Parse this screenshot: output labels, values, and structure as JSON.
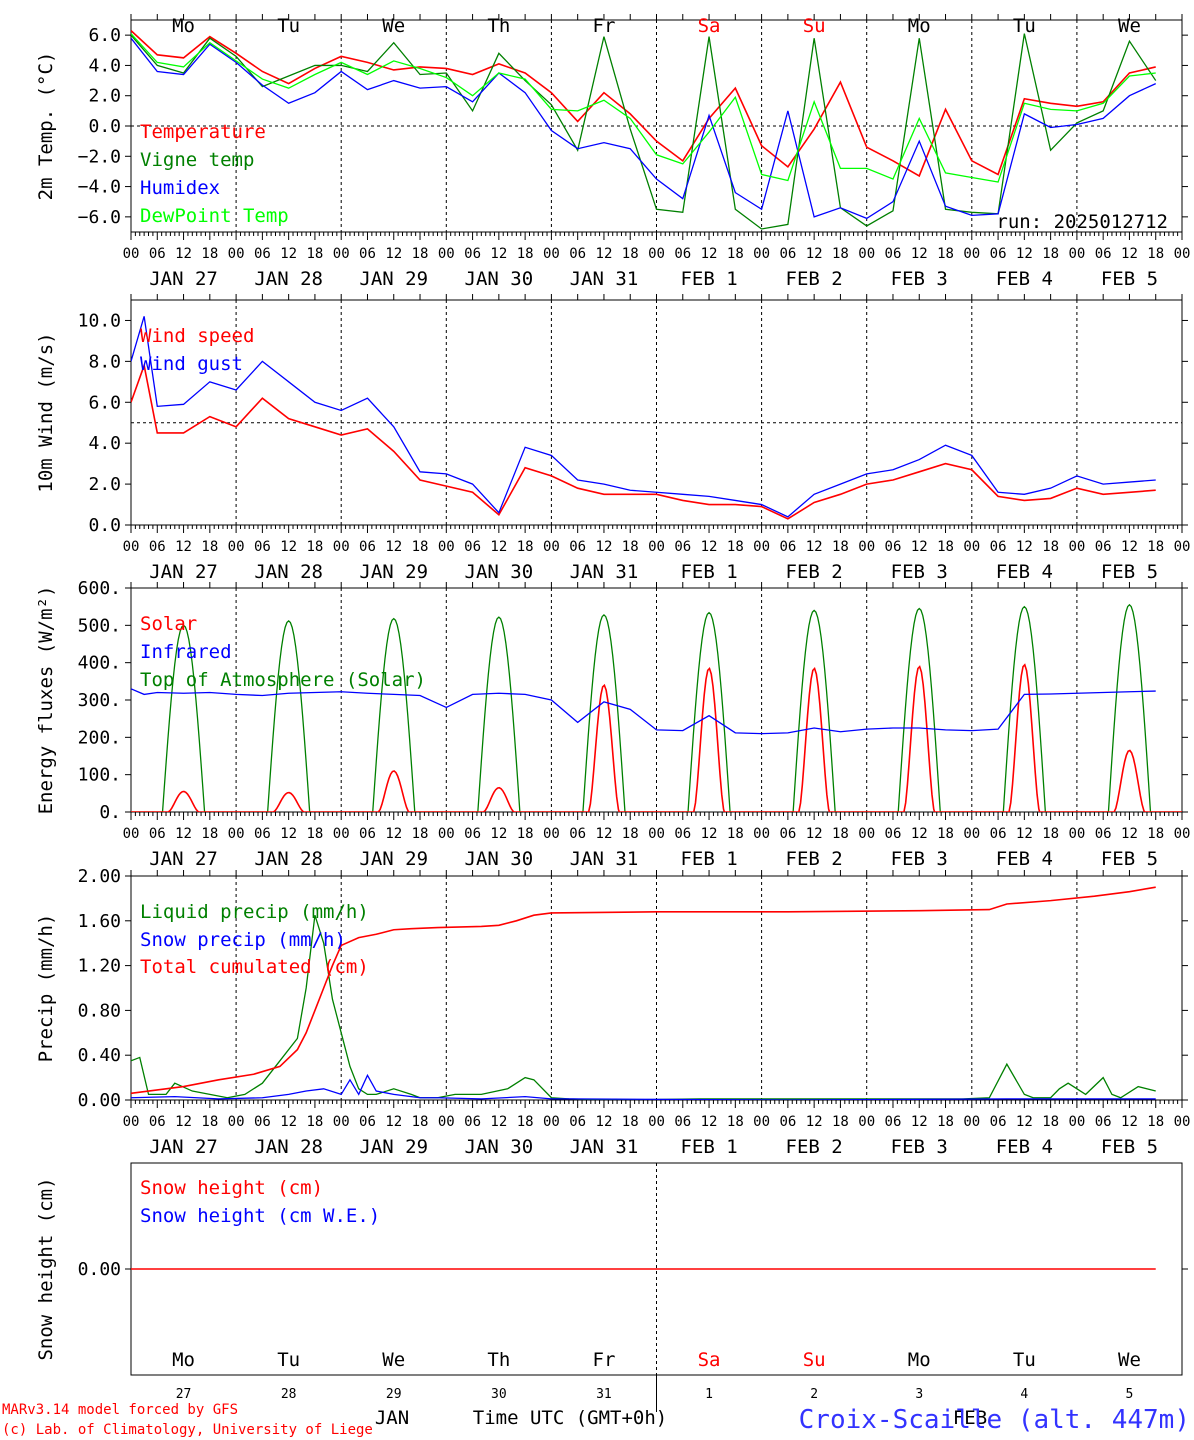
{
  "chart_data": [
    {
      "type": "line",
      "id": "temp",
      "ylabel": "2m Temp. (°C)",
      "ylim": [
        -7.0,
        7.0
      ],
      "yticks": [
        "6.0",
        "4.0",
        "2.0",
        "0.0",
        "−2.0",
        "−4.0",
        "−6.0"
      ],
      "ytick_values": [
        6,
        4,
        2,
        0,
        -2,
        -4,
        -6
      ],
      "ref_line": 0,
      "legend": [
        "Temperature",
        "Vigne temp",
        "Humidex",
        "DewPoint Temp"
      ],
      "annotation": "run: 2025012712",
      "x": [
        0,
        6,
        12,
        18,
        24,
        30,
        36,
        42,
        48,
        54,
        60,
        66,
        72,
        78,
        84,
        90,
        96,
        102,
        108,
        114,
        120,
        126,
        132,
        138,
        144,
        150,
        156,
        162,
        168,
        174,
        180,
        186,
        192,
        198,
        204,
        210,
        216,
        222,
        228,
        234
      ],
      "series": [
        {
          "name": "Temperature",
          "color": "#ff0000",
          "values": [
            6.3,
            4.7,
            4.5,
            5.9,
            4.8,
            3.6,
            2.8,
            3.8,
            4.6,
            4.2,
            3.7,
            3.9,
            3.8,
            3.4,
            4.1,
            3.5,
            2.2,
            0.3,
            2.2,
            0.8,
            -1.0,
            -2.3,
            0.5,
            2.5,
            -1.3,
            -2.7,
            -0.2,
            2.9,
            -1.4,
            -2.3,
            -3.3,
            1.1,
            -2.3,
            -3.2,
            1.8,
            1.5,
            1.3,
            1.6,
            3.5,
            3.9
          ]
        },
        {
          "name": "Vigne temp",
          "color": "#008000",
          "values": [
            6.0,
            4.0,
            3.5,
            5.8,
            4.6,
            2.6,
            3.3,
            4.0,
            4.0,
            3.6,
            5.5,
            3.4,
            3.5,
            1.0,
            4.8,
            3.0,
            1.4,
            -1.6,
            5.9,
            -0.2,
            -5.5,
            -5.7,
            5.9,
            -5.5,
            -6.8,
            -6.5,
            5.8,
            -5.4,
            -6.6,
            -5.6,
            5.8,
            -5.5,
            -5.7,
            -5.8,
            6.1,
            -1.6,
            0.2,
            1.0,
            5.6,
            3.0
          ]
        },
        {
          "name": "Humidex",
          "color": "#0000ff",
          "values": [
            5.8,
            3.6,
            3.4,
            5.4,
            4.2,
            2.7,
            1.5,
            2.2,
            3.6,
            2.4,
            3.0,
            2.5,
            2.6,
            1.6,
            3.5,
            2.2,
            -0.3,
            -1.5,
            -1.1,
            -1.5,
            -3.5,
            -4.8,
            0.7,
            -4.4,
            -5.5,
            1.0,
            -6.0,
            -5.4,
            -6.1,
            -5.0,
            -1.0,
            -5.3,
            -5.9,
            -5.8,
            0.8,
            -0.1,
            0.1,
            0.5,
            2.0,
            2.8
          ]
        },
        {
          "name": "DewPoint Temp",
          "color": "#00ff00",
          "values": [
            6.1,
            4.2,
            3.9,
            5.5,
            4.3,
            3.1,
            2.5,
            3.4,
            4.2,
            3.4,
            4.3,
            3.8,
            3.2,
            2.0,
            3.5,
            3.1,
            1.1,
            1.0,
            1.7,
            0.5,
            -1.9,
            -2.5,
            -0.4,
            1.9,
            -3.2,
            -3.6,
            1.6,
            -2.8,
            -2.8,
            -3.5,
            0.5,
            -3.1,
            -3.4,
            -3.7,
            1.5,
            1.1,
            1.0,
            1.5,
            3.3,
            3.5
          ]
        }
      ]
    },
    {
      "type": "line",
      "id": "wind",
      "ylabel": "10m Wind (m/s)",
      "ylim": [
        0,
        11
      ],
      "yticks": [
        "10.0",
        "8.0",
        "6.0",
        "4.0",
        "2.0",
        "0.0"
      ],
      "ytick_values": [
        10,
        8,
        6,
        4,
        2,
        0
      ],
      "ref_line": 5,
      "legend": [
        "Wind speed",
        "Wind gust"
      ],
      "x": [
        0,
        3,
        6,
        12,
        18,
        24,
        30,
        36,
        42,
        48,
        54,
        60,
        66,
        72,
        78,
        84,
        90,
        96,
        102,
        108,
        114,
        120,
        126,
        132,
        138,
        144,
        150,
        156,
        162,
        168,
        174,
        180,
        186,
        192,
        198,
        204,
        210,
        216,
        222,
        228,
        234
      ],
      "series": [
        {
          "name": "Wind speed",
          "color": "#ff0000",
          "values": [
            6.0,
            7.8,
            4.5,
            4.5,
            5.3,
            4.8,
            6.2,
            5.2,
            4.8,
            4.4,
            4.7,
            3.6,
            2.2,
            1.9,
            1.6,
            0.5,
            2.8,
            2.4,
            1.8,
            1.5,
            1.5,
            1.5,
            1.2,
            1.0,
            1.0,
            0.9,
            0.3,
            1.1,
            1.5,
            2.0,
            2.2,
            2.6,
            3.0,
            2.7,
            1.4,
            1.2,
            1.3,
            1.8,
            1.5,
            1.6,
            1.7
          ]
        },
        {
          "name": "Wind gust",
          "color": "#0000ff",
          "values": [
            8.0,
            10.2,
            5.8,
            5.9,
            7.0,
            6.6,
            8.0,
            7.0,
            6.0,
            5.6,
            6.2,
            4.8,
            2.6,
            2.5,
            2.0,
            0.6,
            3.8,
            3.4,
            2.2,
            2.0,
            1.7,
            1.6,
            1.5,
            1.4,
            1.2,
            1.0,
            0.4,
            1.5,
            2.0,
            2.5,
            2.7,
            3.2,
            3.9,
            3.4,
            1.6,
            1.5,
            1.8,
            2.4,
            2.0,
            2.1,
            2.2
          ]
        }
      ]
    },
    {
      "type": "line",
      "id": "energy",
      "ylabel": "Energy fluxes (W/m²)",
      "ylim": [
        0,
        600
      ],
      "yticks": [
        "600.",
        "500.",
        "400.",
        "300.",
        "200.",
        "100.",
        "0."
      ],
      "ytick_values": [
        600,
        500,
        400,
        300,
        200,
        100,
        0
      ],
      "legend": [
        "Solar",
        "Infrared",
        "Top of Atmosphere (Solar)"
      ],
      "toa_peaks": [
        500,
        512,
        518,
        522,
        528,
        534,
        540,
        545,
        550,
        555
      ],
      "solar_peaks": [
        55,
        52,
        110,
        65,
        340,
        385,
        385,
        390,
        395,
        165
      ],
      "series": [
        {
          "name": "Infrared",
          "color": "#0000ff",
          "x": [
            0,
            3,
            6,
            12,
            18,
            24,
            30,
            36,
            42,
            48,
            54,
            60,
            66,
            72,
            78,
            84,
            90,
            96,
            102,
            108,
            114,
            120,
            126,
            132,
            138,
            144,
            150,
            156,
            162,
            168,
            174,
            180,
            186,
            192,
            198,
            204,
            210,
            216,
            222,
            228,
            234
          ],
          "values": [
            330,
            315,
            320,
            318,
            320,
            315,
            312,
            318,
            320,
            322,
            318,
            315,
            312,
            280,
            315,
            318,
            315,
            300,
            240,
            295,
            275,
            220,
            218,
            258,
            212,
            210,
            212,
            225,
            215,
            222,
            225,
            225,
            220,
            218,
            222,
            315,
            316,
            318,
            320,
            322,
            324
          ]
        }
      ]
    },
    {
      "type": "line",
      "id": "precip",
      "ylabel": "Precip (mm/h)",
      "ylim": [
        0,
        2.0
      ],
      "yticks": [
        "2.00",
        "1.60",
        "1.20",
        "0.80",
        "0.40",
        "0.00"
      ],
      "ytick_values": [
        2.0,
        1.6,
        1.2,
        0.8,
        0.4,
        0.0
      ],
      "legend": [
        "Liquid precip (mm/h)",
        "Snow precip (mm/h)",
        "Total cumulated (cm)"
      ],
      "series": [
        {
          "name": "Liquid precip (mm/h)",
          "color": "#008000",
          "x": [
            0,
            2,
            4,
            8,
            10,
            14,
            18,
            22,
            26,
            30,
            34,
            38,
            40,
            42,
            44,
            46,
            47,
            48,
            50,
            52,
            54,
            56,
            60,
            64,
            66,
            70,
            74,
            80,
            86,
            90,
            92,
            96,
            100,
            110,
            130,
            150,
            170,
            190,
            196,
            200,
            204,
            206,
            210,
            212,
            214,
            218,
            222,
            224,
            226,
            230,
            234
          ],
          "values": [
            0.35,
            0.38,
            0.05,
            0.05,
            0.15,
            0.08,
            0.05,
            0.02,
            0.05,
            0.15,
            0.35,
            0.55,
            1.0,
            1.65,
            1.4,
            0.9,
            0.75,
            0.6,
            0.3,
            0.1,
            0.05,
            0.05,
            0.1,
            0.05,
            0.02,
            0.02,
            0.05,
            0.05,
            0.1,
            0.2,
            0.18,
            0.02,
            0.01,
            0.0,
            0.01,
            0.01,
            0.01,
            0.01,
            0.02,
            0.32,
            0.05,
            0.02,
            0.02,
            0.1,
            0.15,
            0.05,
            0.2,
            0.05,
            0.02,
            0.12,
            0.08
          ]
        },
        {
          "name": "Snow precip (mm/h)",
          "color": "#0000ff",
          "x": [
            0,
            10,
            20,
            30,
            36,
            40,
            44,
            48,
            50,
            52,
            54,
            56,
            60,
            66,
            70,
            80,
            90,
            96,
            100,
            150,
            200,
            234
          ],
          "values": [
            0.02,
            0.03,
            0.01,
            0.02,
            0.05,
            0.08,
            0.1,
            0.05,
            0.18,
            0.05,
            0.22,
            0.08,
            0.05,
            0.02,
            0.02,
            0.01,
            0.03,
            0.01,
            0.01,
            0.0,
            0.01,
            0.01
          ]
        },
        {
          "name": "Total cumulated (cm)",
          "color": "#ff0000",
          "x": [
            0,
            4,
            12,
            20,
            28,
            34,
            38,
            40,
            42,
            44,
            46,
            48,
            52,
            56,
            60,
            64,
            70,
            80,
            84,
            88,
            92,
            96,
            120,
            150,
            180,
            196,
            200,
            210,
            220,
            228,
            234
          ],
          "values": [
            0.06,
            0.08,
            0.12,
            0.18,
            0.23,
            0.3,
            0.45,
            0.6,
            0.8,
            1.0,
            1.2,
            1.38,
            1.45,
            1.48,
            1.52,
            1.53,
            1.54,
            1.55,
            1.56,
            1.6,
            1.65,
            1.67,
            1.68,
            1.68,
            1.69,
            1.7,
            1.75,
            1.78,
            1.82,
            1.86,
            1.9
          ]
        }
      ]
    },
    {
      "type": "line",
      "id": "snow",
      "ylabel": "Snow height (cm)",
      "yticks": [
        "0.00"
      ],
      "ytick_values": [
        0
      ],
      "ylim": [
        -1,
        1
      ],
      "legend": [
        "Snow height (cm)",
        "Snow height (cm W.E.)"
      ],
      "series": [
        {
          "name": "Snow height (cm)",
          "color": "#ff0000",
          "x": [
            0,
            234
          ],
          "values": [
            0,
            0
          ]
        }
      ]
    }
  ],
  "colors": {
    "temp_legend": "#ff0000",
    "vigne": "#008000",
    "humidex": "#0000ff",
    "dew": "#00ff00"
  },
  "hour_ticks": [
    "00",
    "06",
    "12",
    "18"
  ],
  "end_tick": "00",
  "day_labels": [
    "JAN 27",
    "JAN 28",
    "JAN 29",
    "JAN 30",
    "JAN 31",
    "FEB  1",
    "FEB  2",
    "FEB  3",
    "FEB  4",
    "FEB  5"
  ],
  "weekdays": [
    "Mo",
    "Tu",
    "We",
    "Th",
    "Fr",
    "Sa",
    "Su",
    "Mo",
    "Tu",
    "We"
  ],
  "weekday_colors": [
    "#000",
    "#000",
    "#000",
    "#000",
    "#000",
    "#ff0000",
    "#ff0000",
    "#000",
    "#000",
    "#000"
  ],
  "day_numbers": [
    "27",
    "28",
    "29",
    "30",
    "31",
    "1",
    "2",
    "3",
    "4",
    "5"
  ],
  "month_labels": [
    "JAN",
    "FEB"
  ],
  "xlabel": "Time UTC (GMT+0h)",
  "footer": {
    "line1": "MARv3.14 model forced by GFS",
    "line2": "(c) Lab. of Climatology, University of Liege",
    "station": "Croix-Scaille (alt. 447m)"
  }
}
